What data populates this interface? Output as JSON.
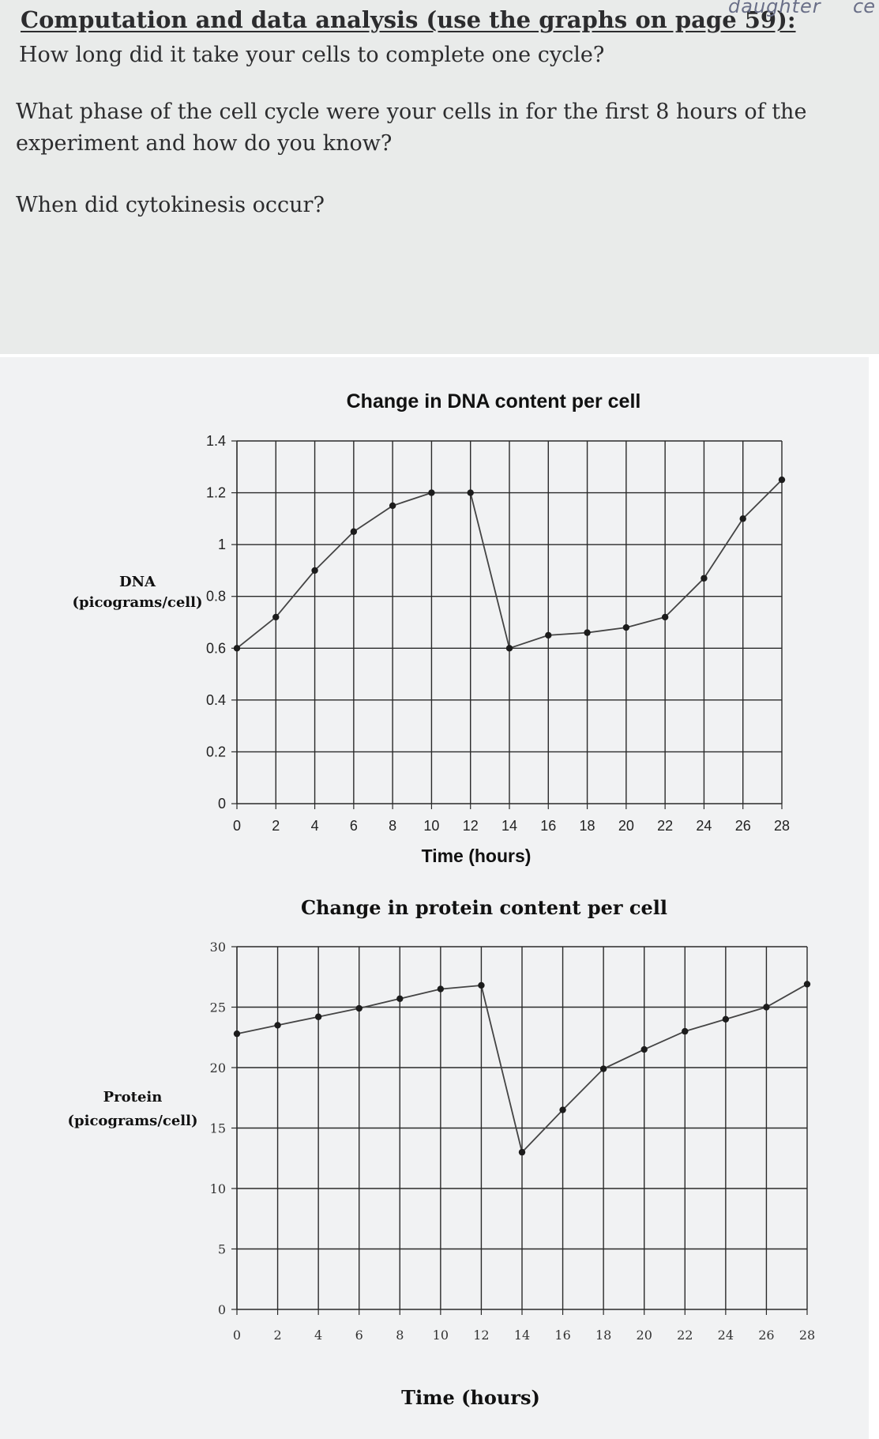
{
  "worksheet": {
    "heading": "Computation and data analysis (use the graphs on page 59):",
    "handwritten_margin": "daughter",
    "handwritten_corner": "ce",
    "questions": [
      "How long did it take your cells to complete one cycle?",
      "What phase of the cell cycle were your cells in for the first 8 hours of the experiment and how do you know?",
      "When did cytokinesis occur?"
    ]
  },
  "chart_data": [
    {
      "type": "line",
      "title": "Change in DNA content per cell",
      "xlabel": "Time (hours)",
      "ylabel_line1": "DNA",
      "ylabel_line2": "(picograms/cell)",
      "xlim": [
        0,
        28
      ],
      "ylim": [
        0,
        1.4
      ],
      "x_ticks": [
        "0",
        "2",
        "4",
        "6",
        "8",
        "10",
        "12",
        "14",
        "16",
        "18",
        "20",
        "22",
        "24",
        "26",
        "28"
      ],
      "y_ticks": [
        "0",
        "0.2",
        "0.4",
        "0.6",
        "0.8",
        "1",
        "1.2",
        "1.4"
      ],
      "grid": true,
      "series": [
        {
          "color": "#444444",
          "x": [
            0,
            2,
            4,
            6,
            8,
            10,
            12,
            14,
            16,
            18,
            20,
            22,
            24,
            26,
            28
          ],
          "y": [
            0.6,
            0.72,
            0.9,
            1.05,
            1.15,
            1.2,
            1.2,
            0.6,
            0.65,
            0.66,
            0.68,
            0.72,
            0.87,
            1.1,
            1.25
          ]
        }
      ]
    },
    {
      "type": "line",
      "title": "Change in protein content per cell",
      "xlabel": "Time (hours)",
      "ylabel_line1": "Protein",
      "ylabel_line2": "(picograms/cell)",
      "xlim": [
        0,
        28
      ],
      "ylim": [
        0,
        30
      ],
      "x_ticks": [
        "0",
        "2",
        "4",
        "6",
        "8",
        "10",
        "12",
        "14",
        "16",
        "18",
        "20",
        "22",
        "24",
        "26",
        "28"
      ],
      "y_ticks": [
        "0",
        "5",
        "10",
        "15",
        "20",
        "25",
        "30"
      ],
      "grid": true,
      "series": [
        {
          "color": "#444444",
          "x": [
            0,
            2,
            4,
            6,
            8,
            10,
            12,
            14,
            16,
            18,
            20,
            22,
            24,
            26,
            28
          ],
          "y": [
            22.8,
            23.5,
            24.2,
            24.9,
            25.7,
            26.5,
            26.8,
            13,
            16.5,
            19.9,
            21.5,
            23,
            24,
            25,
            26.9
          ]
        }
      ]
    }
  ]
}
